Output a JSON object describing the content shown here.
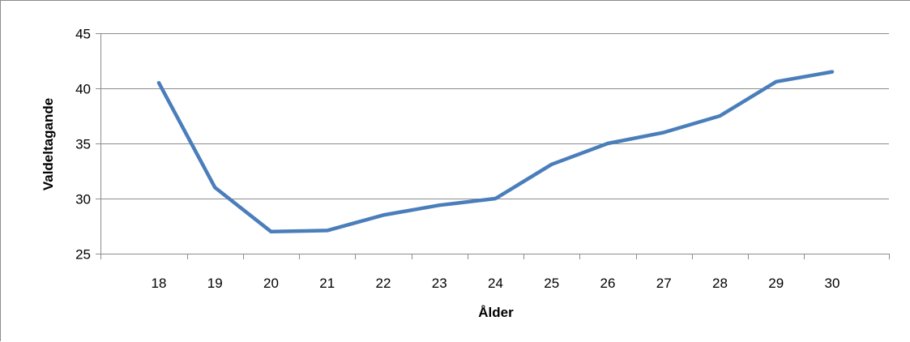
{
  "chart_data": {
    "type": "line",
    "xlabel": "Ålder",
    "ylabel": "Valdeltagande",
    "categories": [
      "18",
      "19",
      "20",
      "21",
      "22",
      "23",
      "24",
      "25",
      "26",
      "27",
      "28",
      "29",
      "30"
    ],
    "series": [
      {
        "values": [
          40.5,
          31.0,
          27.0,
          27.1,
          28.5,
          29.4,
          30.0,
          33.1,
          35.0,
          36.0,
          37.5,
          40.6,
          41.5
        ]
      }
    ],
    "ylim": [
      25,
      45
    ],
    "yticks": [
      "25",
      "30",
      "35",
      "40",
      "45"
    ],
    "grid": true,
    "legend": "none",
    "colors": {
      "line": "#4a7ebb",
      "grid": "#8c8c8c",
      "axis": "#8c8c8c"
    }
  }
}
